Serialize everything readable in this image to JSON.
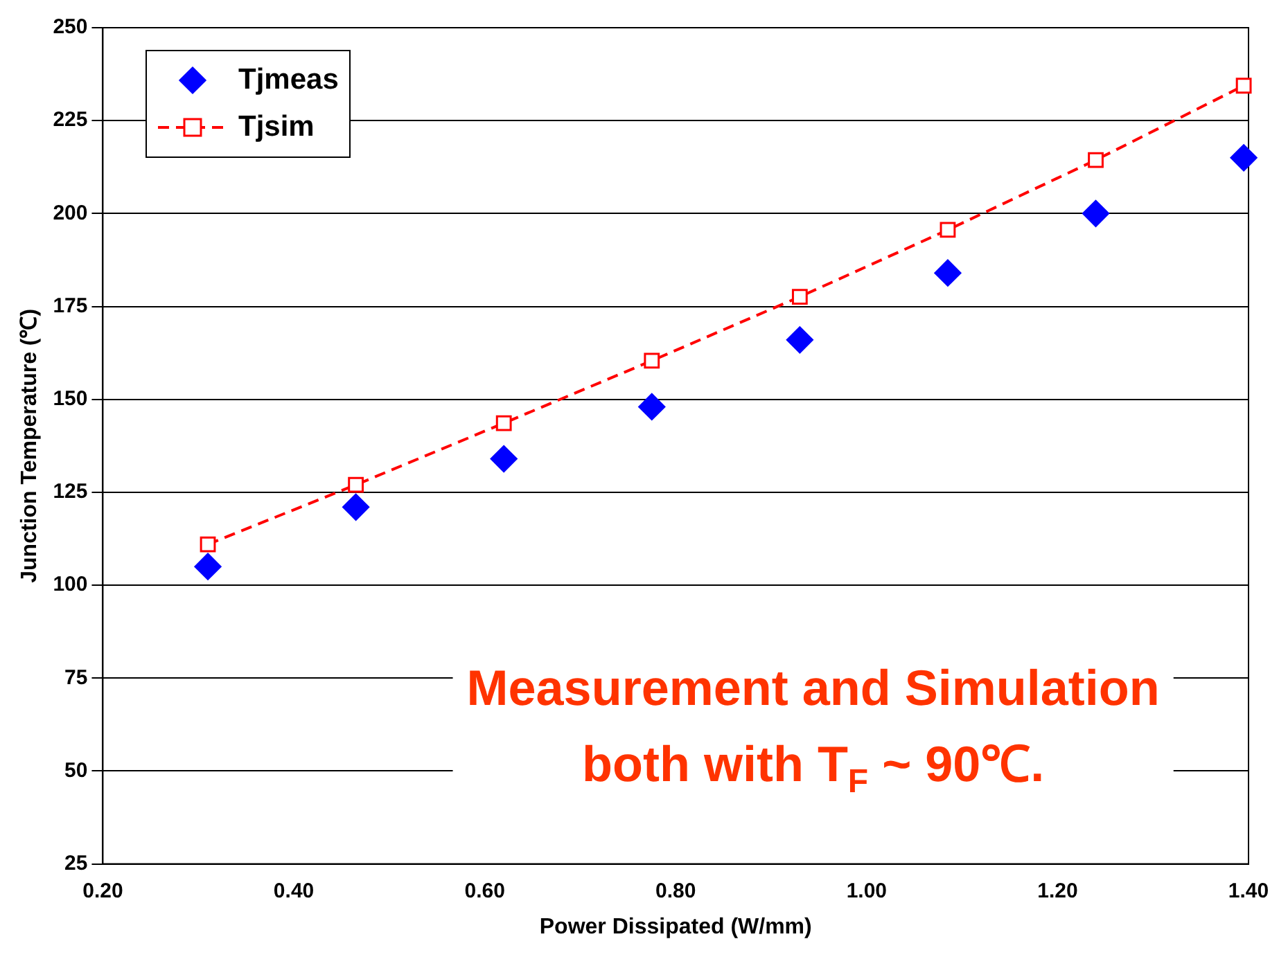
{
  "chart_data": {
    "type": "scatter",
    "xlabel": "Power Dissipated (W/mm)",
    "ylabel": "Junction Temperature (℃)",
    "xlim": [
      0.2,
      1.4
    ],
    "xticks": [
      {
        "value": 0.2,
        "label": "0.20"
      },
      {
        "value": 0.4,
        "label": "0.40"
      },
      {
        "value": 0.6,
        "label": "0.60"
      },
      {
        "value": 0.8,
        "label": "0.80"
      },
      {
        "value": 1.0,
        "label": "1.00"
      },
      {
        "value": 1.2,
        "label": "1.20"
      },
      {
        "value": 1.4,
        "label": "1.40"
      }
    ],
    "ylim": [
      25,
      250
    ],
    "yticks": [
      25,
      50,
      75,
      100,
      125,
      150,
      175,
      200,
      225,
      250
    ],
    "grid": "y",
    "legend": "top left",
    "x": [
      0.31,
      0.465,
      0.62,
      0.775,
      0.93,
      1.085,
      1.24,
      1.395
    ],
    "series": [
      {
        "name": "Tjmeas",
        "type": "scatter",
        "marker": "diamond",
        "color": "#0000ff",
        "values": [
          105,
          121,
          134,
          148,
          166,
          184,
          200,
          215
        ]
      },
      {
        "name": "Tjsim",
        "type": "line",
        "marker": "square",
        "line_style": "dashed",
        "color": "#ff0000",
        "values": [
          111,
          127,
          143.6,
          160.4,
          177.6,
          195.6,
          214.4,
          234.4
        ]
      }
    ],
    "annotations": [
      "Measurement and Simulation",
      "both with T$_{F}$ ~ 90℃."
    ]
  }
}
